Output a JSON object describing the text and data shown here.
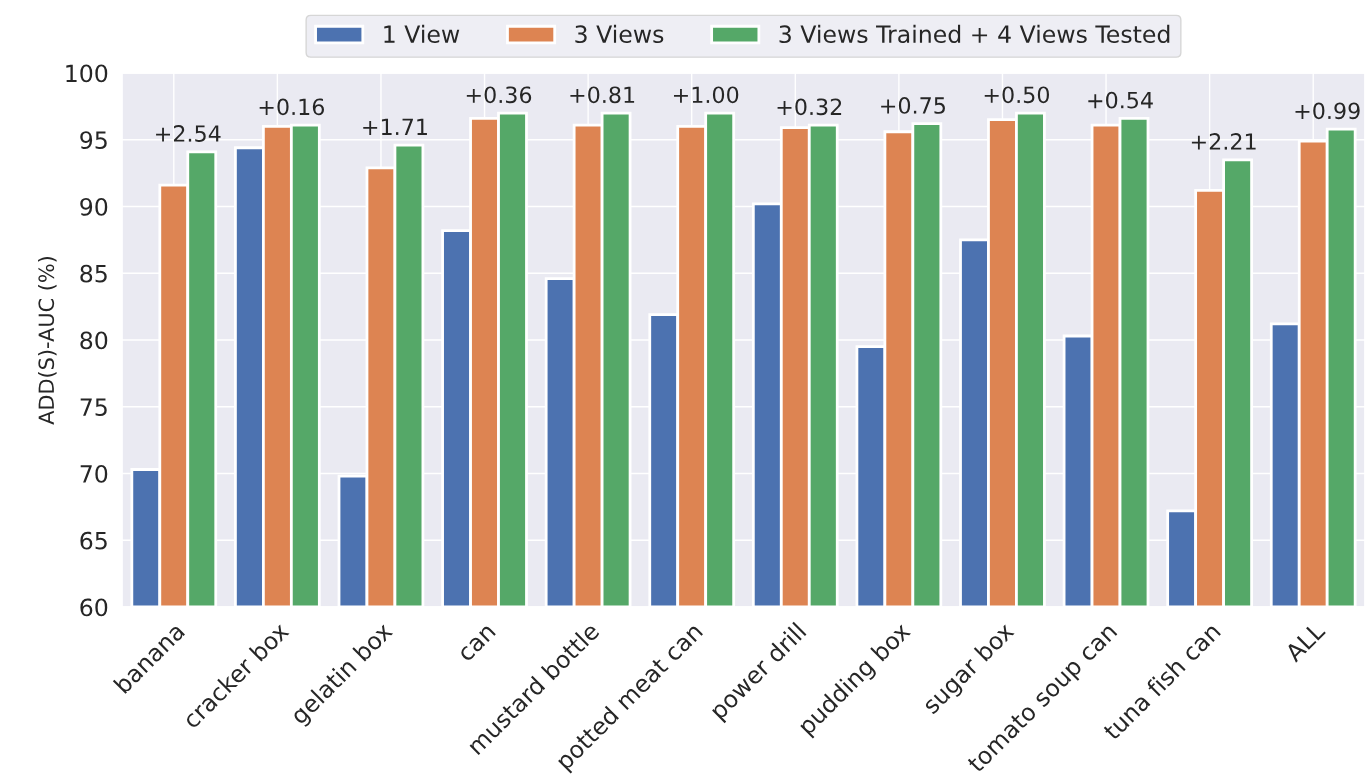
{
  "chart_data": {
    "type": "bar",
    "ylabel": "ADD(S)-AUC (%)",
    "categories": [
      "banana",
      "cracker box",
      "gelatin box",
      "can",
      "mustard bottle",
      "potted meat can",
      "power drill",
      "pudding box",
      "sugar box",
      "tomato soup can",
      "tuna fish can",
      "ALL"
    ],
    "series": [
      {
        "name": "1 View",
        "color": "#4c72b0",
        "values": [
          70.3,
          94.4,
          69.8,
          88.2,
          84.6,
          81.9,
          90.2,
          79.5,
          87.5,
          80.3,
          67.2,
          81.2
        ]
      },
      {
        "name": "3 Views",
        "color": "#dd8452",
        "values": [
          91.6,
          96.0,
          92.9,
          96.6,
          96.1,
          96.0,
          95.9,
          95.6,
          96.5,
          96.1,
          91.2,
          94.9
        ]
      },
      {
        "name": "3 Views Trained + 4 Views Tested",
        "color": "#55a868",
        "values": [
          94.1,
          96.1,
          94.6,
          97.0,
          97.0,
          97.0,
          96.1,
          96.2,
          97.0,
          96.6,
          93.5,
          95.8
        ]
      }
    ],
    "ylim": [
      60,
      100
    ],
    "yticks": [
      60,
      65,
      70,
      75,
      80,
      85,
      90,
      95,
      100
    ],
    "grid": true,
    "legend": "top",
    "annotations": [
      "+2.54",
      "+0.16",
      "+1.71",
      "+0.36",
      "+0.81",
      "+1.00",
      "+0.32",
      "+0.75",
      "+0.50",
      "+0.54",
      "+2.21",
      "+0.99"
    ]
  }
}
